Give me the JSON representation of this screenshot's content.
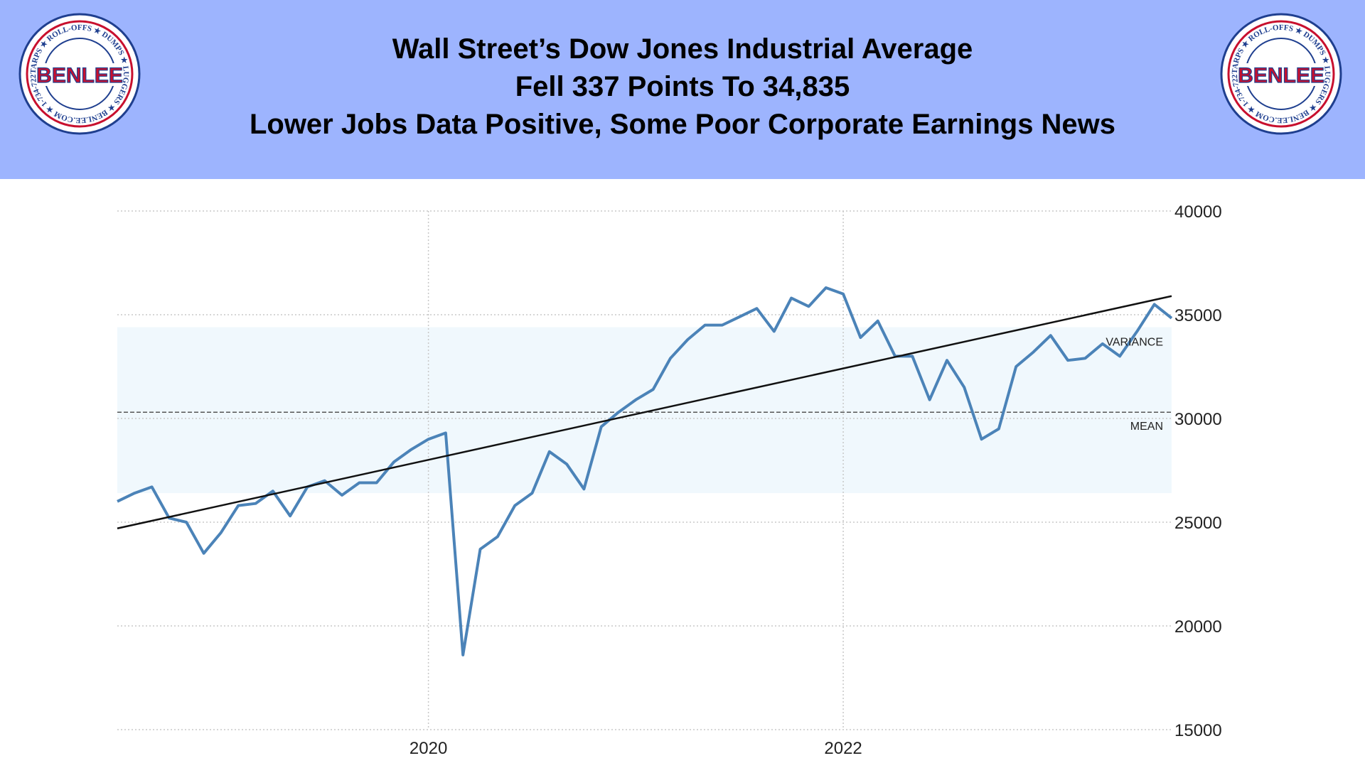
{
  "header": {
    "line1": "Wall Street’s Dow Jones Industrial Average",
    "line2": "Fell 337 Points To 34,835",
    "line3": "Lower Jobs Data Positive, Some Poor Corporate Earnings News"
  },
  "logo": {
    "brand": "BENLEE",
    "ring_text": "TARPS ★ ROLL-OFFS ★ DUMPS ★ LUGGERS ★ BENLEE.COM ★ 1-734-722-8100 ★ PARTS ★",
    "colors": {
      "ring": "#c8102e",
      "brand": "#c8102e",
      "text": "#1f3f8f"
    }
  },
  "chart_data": {
    "type": "line",
    "title": "",
    "xlabel": "",
    "ylabel": "",
    "x_ticks": [
      "2020",
      "2022"
    ],
    "y_ticks": [
      15000,
      20000,
      25000,
      30000,
      35000,
      40000
    ],
    "ylim": [
      15000,
      40000
    ],
    "y_axis_side": "right",
    "grid": true,
    "annotations": {
      "mean_label": "MEAN",
      "variance_label": "VARIANCE"
    },
    "mean": 30300,
    "variance_band": [
      26400,
      34400
    ],
    "trend_line": {
      "start": [
        "2018-07",
        24700
      ],
      "end": [
        "2023-08",
        35900
      ]
    },
    "colors": {
      "line": "#4b83b8",
      "trend": "#111111",
      "band": "#f0f8fd",
      "grid": "#c8c8c8"
    },
    "series": [
      {
        "x": [
          "2018-07",
          "2018-08",
          "2018-09",
          "2018-10",
          "2018-11",
          "2018-12",
          "2019-01",
          "2019-02",
          "2019-03",
          "2019-04",
          "2019-05",
          "2019-06",
          "2019-07",
          "2019-08",
          "2019-09",
          "2019-10",
          "2019-11",
          "2019-12",
          "2020-01",
          "2020-02",
          "2020-03",
          "2020-04",
          "2020-05",
          "2020-06",
          "2020-07",
          "2020-08",
          "2020-09",
          "2020-10",
          "2020-11",
          "2020-12",
          "2021-01",
          "2021-02",
          "2021-03",
          "2021-04",
          "2021-05",
          "2021-06",
          "2021-07",
          "2021-08",
          "2021-09",
          "2021-10",
          "2021-11",
          "2021-12",
          "2022-01",
          "2022-02",
          "2022-03",
          "2022-04",
          "2022-05",
          "2022-06",
          "2022-07",
          "2022-08",
          "2022-09",
          "2022-10",
          "2022-11",
          "2022-12",
          "2023-01",
          "2023-02",
          "2023-03",
          "2023-04",
          "2023-05",
          "2023-06",
          "2023-07",
          "2023-08"
        ],
        "values": [
          26000,
          26400,
          26700,
          25200,
          25000,
          23500,
          24500,
          25800,
          25900,
          26500,
          25300,
          26700,
          27000,
          26300,
          26900,
          26900,
          27900,
          28500,
          29000,
          29300,
          18600,
          23700,
          24300,
          25800,
          26400,
          28400,
          27800,
          26600,
          29600,
          30300,
          30900,
          31400,
          32900,
          33800,
          34500,
          34500,
          34900,
          35300,
          34200,
          35800,
          35400,
          36300,
          36000,
          33900,
          34700,
          33000,
          33000,
          30900,
          32800,
          31500,
          29000,
          29500,
          32500,
          33200,
          34000,
          32800,
          32900,
          33600,
          33000,
          34200,
          35500,
          34835
        ]
      }
    ]
  }
}
